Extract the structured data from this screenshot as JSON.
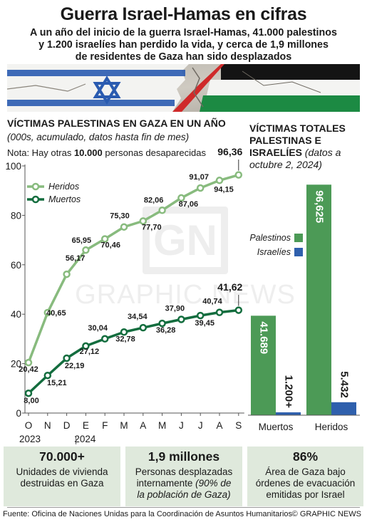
{
  "header": {
    "title": "Guerra Israel-Hamas en cifras",
    "subtitle_lines": [
      "A un año del inicio de la guerra Israel-Hamas, 41.000 palestinos",
      "y 1.200 israelíes han perdido la vida, y cerca de 1,9 millones",
      "de residentes de Gaza han sido desplazados"
    ]
  },
  "colors": {
    "heridos": "#88bb7e",
    "muertos": "#136d3e",
    "palestinos": "#4c9a56",
    "israelies": "#2f60ad",
    "stat_bg": "#dfe9dc"
  },
  "left_panel": {
    "title": "VÍCTIMAS PALESTINAS EN GAZA EN UN AÑO",
    "subtitle": "(000s, acumulado, datos hasta fin de mes)",
    "note_prefix": "Nota: Hay otras ",
    "note_bold": "10.000",
    "note_suffix": " personas desaparecidas",
    "year_start": "2023",
    "year_next": "2024"
  },
  "right_panel": {
    "title_lines": [
      "VÍCTIMAS TOTALES",
      "PALESTINAS E"
    ],
    "title_line3_bold": "ISRAELÍES",
    "title_line3_italic": " (datos a",
    "title_line4_italic": "octubre 2, 2024)"
  },
  "chart_data": [
    {
      "type": "line",
      "title": "VÍCTIMAS PALESTINAS EN GAZA EN UN AÑO",
      "x": [
        "O",
        "N",
        "D",
        "E",
        "F",
        "M",
        "A",
        "M",
        "J",
        "J",
        "A",
        "S"
      ],
      "ylim": [
        0,
        100
      ],
      "yticks": [
        0,
        20,
        40,
        60,
        80,
        100
      ],
      "grid": false,
      "legend": "top-left",
      "series": [
        {
          "name": "Heridos",
          "values": [
            20.42,
            40.65,
            56.17,
            65.95,
            70.46,
            75.3,
            77.7,
            82.06,
            87.06,
            91.07,
            94.15,
            96.36
          ],
          "labels": [
            "20,42",
            "40,65",
            "56,17",
            "65,95",
            "70,46",
            "75,30",
            "77,70",
            "82,06",
            "87,06",
            "91,07",
            "94,15",
            "96,36"
          ]
        },
        {
          "name": "Muertos",
          "values": [
            8.0,
            15.21,
            22.19,
            27.12,
            30.04,
            32.78,
            34.54,
            36.28,
            37.9,
            39.45,
            40.74,
            41.62
          ],
          "labels": [
            "8,00",
            "15,21",
            "22,19",
            "27,12",
            "30,04",
            "32,78",
            "34,54",
            "36,28",
            "37,90",
            "39,45",
            "40,74",
            "41,62"
          ]
        }
      ]
    },
    {
      "type": "bar",
      "categories": [
        "Muertos",
        "Heridos"
      ],
      "ylim": [
        0,
        100
      ],
      "legend": "center-right",
      "series": [
        {
          "name": "Palestinos",
          "values": [
            41.689,
            96.625
          ],
          "labels": [
            "41.689",
            "96,625"
          ]
        },
        {
          "name": "Israelíes",
          "values": [
            1.2,
            5.432
          ],
          "labels": [
            "1.200+",
            "5.432"
          ]
        }
      ]
    }
  ],
  "stats": [
    {
      "big": "70.000+",
      "desc_lines": [
        "Unidades de vivienda",
        "destruidas en Gaza"
      ],
      "desc_italic": []
    },
    {
      "big": "1,9 millones",
      "desc_lines": [
        "Personas desplazadas"
      ],
      "desc_mixed": {
        "normal": "internamente ",
        "italic": "(90% de"
      },
      "desc_italic": [
        "la población de Gaza)"
      ]
    },
    {
      "big": "86%",
      "desc_lines": [
        "Área de Gaza bajo",
        "órdenes de evacuación",
        "emitidas por Israel"
      ],
      "desc_italic": []
    }
  ],
  "watermark": {
    "logo": "GN",
    "text": "GRAPHIC NEWS"
  },
  "footer": {
    "source": "Fuente: Oficina de Naciones Unidas para la Coordinación de Asuntos Humanitarios",
    "copyright": "© GRAPHIC NEWS"
  }
}
